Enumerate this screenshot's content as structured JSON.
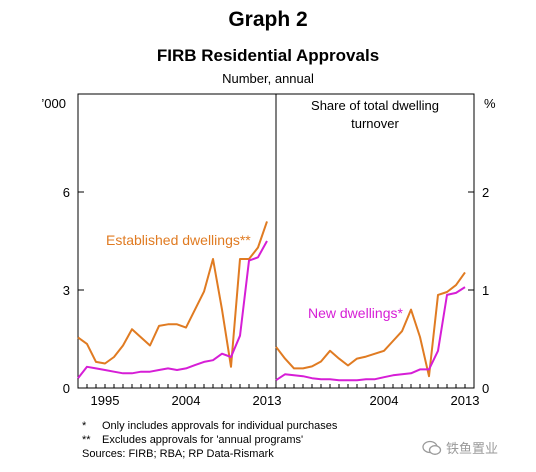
{
  "title": "Graph 2",
  "subtitle": "FIRB Residential Approvals",
  "note": "Number, annual",
  "chart_data": [
    {
      "type": "line",
      "panel": "left",
      "yunit": "’000",
      "ylim": [
        0,
        9
      ],
      "yticks": [
        0,
        3,
        6
      ],
      "xlim": [
        1992,
        2014
      ],
      "xticks": [
        1995,
        2004,
        2013
      ],
      "series": [
        {
          "name": "Established dwellings**",
          "color": "#e07b22",
          "x": [
            1992,
            1993,
            1994,
            1995,
            1996,
            1997,
            1998,
            1999,
            2000,
            2001,
            2002,
            2003,
            2004,
            2005,
            2006,
            2007,
            2008,
            2009,
            2010,
            2011,
            2012,
            2013
          ],
          "y": [
            1.55,
            1.35,
            0.8,
            0.75,
            0.95,
            1.3,
            1.8,
            1.55,
            1.3,
            1.9,
            1.95,
            1.95,
            1.85,
            2.4,
            2.95,
            3.95,
            2.4,
            0.65,
            3.95,
            3.95,
            4.3,
            5.1
          ]
        },
        {
          "name": "New dwellings*",
          "color": "#d61ed6",
          "x": [
            1992,
            1993,
            1994,
            1995,
            1996,
            1997,
            1998,
            1999,
            2000,
            2001,
            2002,
            2003,
            2004,
            2005,
            2006,
            2007,
            2008,
            2009,
            2010,
            2011,
            2012,
            2013
          ],
          "y": [
            0.3,
            0.65,
            0.6,
            0.55,
            0.5,
            0.45,
            0.45,
            0.5,
            0.5,
            0.55,
            0.6,
            0.55,
            0.6,
            0.7,
            0.8,
            0.85,
            1.05,
            0.95,
            1.6,
            3.9,
            4.0,
            4.5
          ]
        }
      ]
    },
    {
      "type": "line",
      "panel": "right",
      "panel_label": "Share of total dwelling turnover",
      "yunit": "%",
      "ylim": [
        0,
        3
      ],
      "yticks": [
        0,
        1,
        2
      ],
      "xlim": [
        1992,
        2014
      ],
      "xticks": [
        2004,
        2013
      ],
      "series": [
        {
          "name": "Established dwellings**",
          "color": "#e07b22",
          "x": [
            1992,
            1993,
            1994,
            1995,
            1996,
            1997,
            1998,
            1999,
            2000,
            2001,
            2002,
            2003,
            2004,
            2005,
            2006,
            2007,
            2008,
            2009,
            2010,
            2011,
            2012,
            2013
          ],
          "y": [
            0.42,
            0.3,
            0.2,
            0.2,
            0.22,
            0.27,
            0.38,
            0.3,
            0.23,
            0.3,
            0.32,
            0.35,
            0.38,
            0.48,
            0.58,
            0.8,
            0.52,
            0.12,
            0.95,
            0.98,
            1.05,
            1.18
          ]
        },
        {
          "name": "New dwellings*",
          "color": "#d61ed6",
          "x": [
            1992,
            1993,
            1994,
            1995,
            1996,
            1997,
            1998,
            1999,
            2000,
            2001,
            2002,
            2003,
            2004,
            2005,
            2006,
            2007,
            2008,
            2009,
            2010,
            2011,
            2012,
            2013
          ],
          "y": [
            0.08,
            0.14,
            0.13,
            0.12,
            0.1,
            0.09,
            0.09,
            0.08,
            0.08,
            0.08,
            0.09,
            0.09,
            0.11,
            0.13,
            0.14,
            0.15,
            0.19,
            0.19,
            0.38,
            0.95,
            0.97,
            1.03
          ]
        }
      ]
    }
  ],
  "footnotes": [
    {
      "mark": "*",
      "text": "Only includes approvals for individual purchases"
    },
    {
      "mark": "**",
      "text": "Excludes approvals for 'annual programs'"
    }
  ],
  "sources": "Sources: FIRB; RBA; RP Data-Rismark",
  "watermark": "铁鱼置业"
}
